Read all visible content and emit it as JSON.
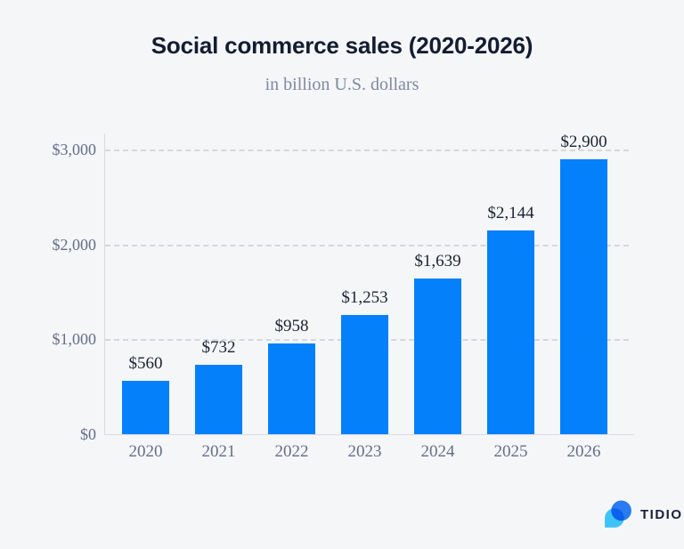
{
  "header": {
    "title": "Social commerce sales (2020-2026)",
    "subtitle": "in billion U.S. dollars"
  },
  "chart_data": {
    "type": "bar",
    "title": "Social commerce sales (2020-2026)",
    "subtitle": "in billion U.S. dollars",
    "unit": "billion U.S. dollars",
    "categories": [
      "2020",
      "2021",
      "2022",
      "2023",
      "2024",
      "2025",
      "2026"
    ],
    "values": [
      560,
      732,
      958,
      1253,
      1639,
      2144,
      2900
    ],
    "value_labels": [
      "$560",
      "$732",
      "$958",
      "$1,253",
      "$1,639",
      "$2,144",
      "$2,900"
    ],
    "yticks": {
      "values": [
        0,
        1000,
        2000,
        3000
      ],
      "labels": [
        "$0",
        "$1,000",
        "$2,000",
        "$3,000"
      ]
    },
    "ylim": [
      0,
      3000
    ],
    "grid": "dashed-horizontal",
    "legend": "none",
    "bar_color": "#0580fb"
  },
  "branding": {
    "logo_text": "TIDIO",
    "logo_icon": "tidio-chat-bubble-icon"
  },
  "colors": {
    "background": "#f5f6f8",
    "title": "#131c31",
    "subtitle": "#7e89a0",
    "axis_label": "#636f88",
    "value_label": "#1a2232",
    "gridline": "#c9cdd6",
    "axis_line": "#d8dce3",
    "bar": "#0580fb",
    "logo_dark_blue": "#2a7ff6",
    "logo_light_blue": "#3fc2f6"
  }
}
